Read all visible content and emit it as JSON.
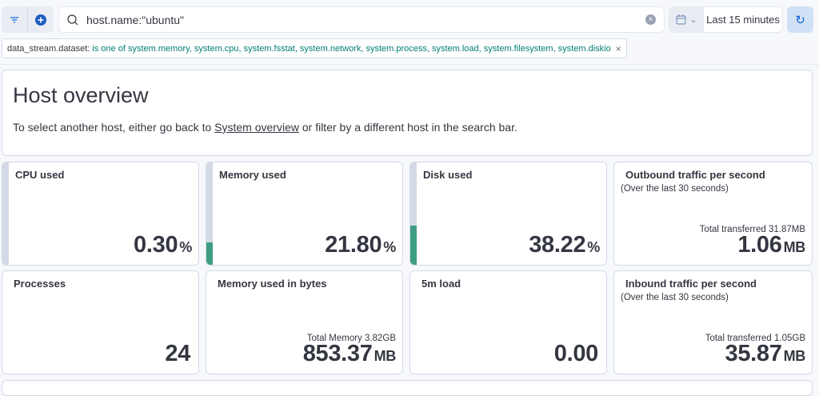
{
  "query_bar": {
    "query": "host.name:\"ubuntu\"",
    "filter_icon": "filter-icon",
    "add_icon": "plus-circle-icon"
  },
  "time_picker": {
    "label": "Last 15 minutes",
    "icon": "calendar-icon"
  },
  "filter_pill": {
    "field": "data_stream.dataset:",
    "value": "is one of system.memory, system.cpu, system.fsstat, system.network, system.process, system.load, system.filesystem, system.diskio",
    "remove": "×"
  },
  "overview": {
    "title": "Host overview",
    "text_before": "To select another host, either go back to ",
    "link": "System overview",
    "text_after": " or filter by a different host in the search bar."
  },
  "accent_color": "#3f9e82",
  "cards": [
    {
      "title": "CPU used",
      "value": "0.30",
      "unit": "%",
      "gauge_percent": 0.3
    },
    {
      "title": "Memory used",
      "value": "21.80",
      "unit": "%",
      "gauge_percent": 21.8
    },
    {
      "title": "Disk used",
      "value": "38.22",
      "unit": "%",
      "gauge_percent": 38.22
    },
    {
      "title": "Outbound traffic per second",
      "subtitle": "(Over the last 30 seconds)",
      "extra": "Total transferred 31.87MB",
      "value": "1.06",
      "unit": "MB"
    },
    {
      "title": "Processes",
      "value": "24",
      "unit": ""
    },
    {
      "title": "Memory used in bytes",
      "extra": "Total Memory 3.82GB",
      "value": "853.37",
      "unit": "MB"
    },
    {
      "title": "5m load",
      "value": "0.00",
      "unit": ""
    },
    {
      "title": "Inbound traffic per second",
      "subtitle": "(Over the last 30 seconds)",
      "extra": "Total transferred 1.05GB",
      "value": "35.87",
      "unit": "MB"
    }
  ]
}
